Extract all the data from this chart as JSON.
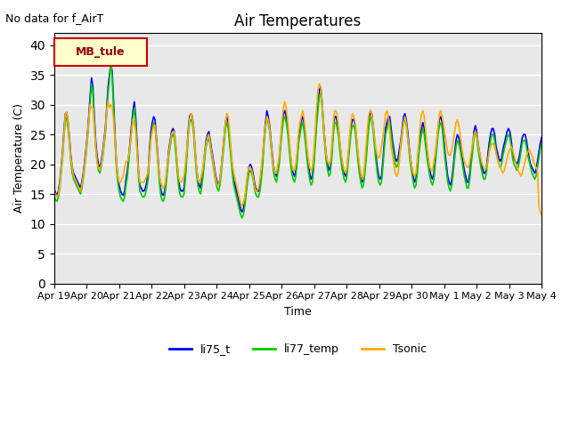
{
  "title": "Air Temperatures",
  "ylabel": "Air Temperature (C)",
  "xlabel": "Time",
  "no_data_text": "No data for f_AirT",
  "legend_label": "MB_tule",
  "ylim": [
    0,
    42
  ],
  "yticks": [
    0,
    5,
    10,
    15,
    20,
    25,
    30,
    35,
    40
  ],
  "series_colors": {
    "li75_t": "#0000ff",
    "li77_temp": "#00cc00",
    "Tsonic": "#ffaa00"
  },
  "x_tick_labels": [
    "Apr 19",
    "Apr 20",
    "Apr 21",
    "Apr 22",
    "Apr 23",
    "Apr 24",
    "Apr 25",
    "Apr 26",
    "Apr 27",
    "Apr 28",
    "Apr 29",
    "Apr 30",
    "May 1",
    "May 2",
    "May 3",
    "May 4"
  ],
  "background_color": "#e8e8e8",
  "plot_bg_color": "#e8e8e8",
  "figure_bg_color": "#ffffff",
  "grid_color": "#ffffff",
  "li75_t": [
    15.8,
    15.2,
    14.8,
    15.5,
    17.0,
    19.5,
    22.0,
    25.5,
    28.5,
    28.7,
    27.0,
    24.5,
    21.5,
    19.5,
    18.5,
    18.0,
    17.5,
    17.0,
    16.5,
    16.0,
    17.0,
    18.5,
    20.5,
    22.5,
    25.0,
    28.0,
    31.5,
    34.5,
    33.0,
    28.0,
    24.0,
    21.5,
    20.0,
    19.5,
    20.5,
    22.0,
    24.0,
    26.0,
    29.5,
    33.0,
    35.0,
    37.0,
    35.5,
    30.5,
    25.0,
    20.5,
    18.0,
    16.5,
    15.5,
    15.0,
    14.8,
    15.5,
    17.5,
    19.0,
    21.5,
    24.0,
    26.5,
    29.0,
    30.5,
    28.0,
    23.5,
    19.0,
    16.5,
    16.0,
    15.5,
    15.5,
    16.0,
    17.0,
    18.5,
    22.5,
    25.5,
    27.0,
    28.0,
    27.5,
    24.5,
    21.5,
    18.5,
    16.0,
    15.0,
    14.8,
    15.5,
    17.5,
    20.0,
    22.5,
    24.0,
    25.5,
    26.0,
    25.5,
    23.0,
    20.0,
    17.5,
    16.0,
    15.5,
    15.5,
    16.0,
    18.5,
    22.0,
    25.5,
    28.0,
    28.5,
    28.0,
    26.0,
    22.5,
    19.5,
    17.5,
    16.5,
    16.0,
    17.5,
    19.5,
    22.0,
    24.0,
    25.0,
    25.5,
    24.0,
    22.5,
    21.0,
    19.5,
    18.0,
    17.0,
    16.5,
    17.5,
    19.5,
    22.0,
    24.5,
    27.0,
    28.0,
    27.0,
    24.5,
    22.0,
    19.5,
    17.5,
    16.5,
    15.5,
    14.5,
    13.5,
    12.5,
    12.0,
    12.5,
    14.0,
    16.0,
    18.0,
    19.5,
    20.0,
    19.5,
    18.5,
    17.0,
    16.0,
    15.5,
    15.5,
    16.5,
    18.5,
    21.0,
    24.5,
    27.0,
    29.0,
    28.0,
    26.5,
    24.0,
    21.5,
    19.5,
    18.5,
    18.0,
    19.5,
    21.0,
    24.0,
    26.5,
    28.5,
    29.0,
    28.0,
    26.5,
    24.0,
    21.5,
    19.5,
    18.5,
    18.0,
    19.0,
    21.5,
    24.5,
    26.0,
    27.5,
    28.0,
    26.5,
    24.5,
    22.0,
    20.0,
    18.5,
    17.5,
    18.0,
    20.5,
    24.0,
    27.5,
    30.0,
    32.5,
    33.0,
    30.5,
    27.0,
    24.0,
    21.5,
    20.0,
    19.0,
    19.5,
    22.0,
    25.5,
    28.0,
    28.0,
    27.0,
    25.5,
    23.0,
    21.0,
    19.5,
    18.5,
    18.0,
    19.0,
    21.5,
    24.0,
    26.5,
    27.5,
    27.5,
    26.5,
    24.0,
    21.5,
    19.5,
    18.0,
    17.0,
    17.5,
    19.5,
    22.0,
    25.0,
    27.5,
    29.0,
    28.5,
    26.5,
    24.0,
    21.5,
    19.5,
    18.0,
    17.5,
    18.0,
    20.5,
    23.5,
    26.0,
    27.0,
    28.0,
    28.0,
    26.0,
    24.0,
    22.5,
    21.0,
    20.5,
    21.0,
    22.5,
    24.0,
    26.0,
    28.0,
    28.5,
    27.5,
    25.5,
    23.0,
    21.0,
    19.5,
    18.0,
    17.0,
    17.5,
    19.5,
    22.5,
    24.5,
    26.0,
    27.0,
    26.0,
    24.0,
    22.0,
    20.5,
    19.0,
    18.0,
    17.5,
    18.5,
    21.0,
    23.5,
    26.0,
    27.5,
    28.0,
    27.0,
    24.5,
    22.0,
    20.0,
    18.0,
    17.0,
    16.5,
    17.5,
    19.5,
    22.0,
    24.0,
    25.0,
    24.5,
    23.5,
    22.0,
    20.5,
    19.0,
    18.0,
    17.0,
    17.0,
    18.5,
    21.0,
    23.0,
    25.5,
    26.5,
    25.5,
    23.5,
    22.0,
    20.5,
    19.5,
    18.5,
    18.5,
    19.5,
    21.5,
    23.5,
    25.0,
    26.0,
    26.0,
    25.0,
    23.0,
    22.0,
    21.0,
    20.5,
    21.0,
    22.5,
    23.5,
    24.5,
    25.5,
    26.0,
    25.5,
    24.0,
    22.0,
    21.0,
    20.5,
    20.0,
    20.5,
    21.5,
    23.0,
    24.5,
    25.0,
    25.0,
    24.0,
    22.5,
    21.0,
    20.0,
    19.5,
    19.0,
    18.5,
    19.0,
    20.5,
    22.0,
    23.5,
    24.5,
    24.5,
    23.5,
    22.5,
    21.0,
    20.0,
    19.0,
    18.5,
    18.5,
    19.5,
    21.0,
    22.5,
    24.0,
    24.5,
    24.0,
    23.0,
    21.5,
    20.5,
    19.5,
    18.5,
    18.0,
    18.5,
    20.0,
    21.5,
    23.0,
    24.0,
    24.0,
    23.5,
    22.5,
    21.0,
    20.0,
    19.5,
    19.0,
    19.5,
    20.5,
    21.5,
    22.5,
    23.0,
    23.5,
    23.0,
    22.5,
    21.5,
    20.5,
    20.0,
    19.5,
    13.5,
    12.5,
    12.0
  ],
  "li77_temp": [
    14.5,
    14.0,
    13.8,
    14.5,
    16.0,
    18.5,
    21.0,
    24.5,
    27.5,
    27.7,
    26.0,
    23.5,
    20.5,
    18.5,
    17.5,
    17.0,
    16.5,
    16.0,
    15.5,
    15.0,
    16.0,
    17.5,
    19.5,
    21.5,
    24.0,
    27.0,
    30.5,
    33.5,
    32.0,
    27.0,
    23.0,
    20.5,
    19.0,
    18.5,
    19.5,
    21.0,
    23.0,
    25.0,
    28.5,
    32.0,
    34.0,
    37.5,
    34.5,
    29.5,
    24.0,
    19.5,
    17.0,
    15.5,
    14.5,
    14.0,
    13.8,
    14.5,
    16.5,
    18.0,
    20.5,
    23.0,
    25.5,
    28.0,
    29.5,
    27.0,
    22.5,
    18.0,
    15.5,
    15.0,
    14.5,
    14.5,
    15.0,
    16.0,
    17.5,
    21.5,
    24.5,
    26.0,
    27.0,
    26.5,
    23.5,
    20.5,
    17.5,
    15.0,
    14.0,
    13.8,
    14.5,
    16.5,
    19.0,
    21.5,
    23.0,
    24.5,
    25.0,
    24.5,
    22.0,
    19.0,
    16.5,
    15.0,
    14.5,
    14.5,
    15.0,
    17.5,
    21.0,
    24.5,
    27.0,
    27.5,
    27.0,
    25.0,
    21.5,
    18.5,
    16.5,
    15.5,
    15.0,
    16.5,
    18.5,
    21.0,
    23.0,
    24.0,
    24.5,
    23.0,
    21.5,
    20.0,
    18.5,
    17.0,
    16.0,
    15.5,
    16.5,
    18.5,
    21.0,
    23.5,
    26.0,
    27.0,
    26.0,
    23.5,
    21.0,
    18.5,
    16.5,
    15.5,
    14.5,
    13.5,
    12.5,
    11.5,
    11.0,
    11.5,
    13.0,
    15.0,
    17.0,
    18.5,
    19.0,
    18.5,
    17.5,
    16.0,
    15.0,
    14.5,
    14.5,
    15.5,
    17.5,
    20.0,
    23.5,
    26.0,
    28.0,
    27.0,
    25.5,
    23.0,
    20.5,
    18.5,
    17.5,
    17.0,
    18.5,
    20.0,
    23.0,
    25.5,
    27.5,
    28.0,
    27.0,
    25.5,
    23.0,
    20.5,
    18.5,
    17.5,
    17.0,
    18.0,
    20.5,
    23.5,
    25.0,
    26.5,
    27.0,
    25.5,
    23.5,
    21.0,
    19.0,
    17.5,
    16.5,
    17.0,
    19.5,
    23.0,
    26.5,
    29.0,
    31.5,
    32.0,
    29.5,
    26.0,
    23.0,
    20.5,
    19.0,
    18.0,
    18.5,
    21.0,
    24.5,
    27.0,
    27.0,
    26.0,
    24.5,
    22.0,
    20.0,
    18.5,
    17.5,
    17.0,
    18.0,
    20.5,
    23.0,
    25.5,
    26.5,
    26.5,
    25.5,
    23.0,
    20.5,
    18.5,
    17.0,
    16.0,
    16.5,
    18.5,
    21.0,
    24.0,
    26.5,
    28.0,
    27.5,
    25.5,
    23.0,
    20.5,
    18.5,
    17.0,
    16.5,
    17.0,
    19.5,
    22.5,
    25.0,
    26.0,
    27.0,
    27.0,
    25.0,
    23.0,
    21.5,
    20.0,
    19.5,
    20.0,
    21.5,
    23.0,
    25.0,
    27.0,
    27.5,
    26.5,
    24.5,
    22.0,
    20.0,
    18.5,
    17.0,
    16.0,
    16.5,
    18.5,
    21.5,
    23.5,
    25.0,
    26.0,
    25.0,
    23.0,
    21.0,
    19.5,
    18.0,
    17.0,
    16.5,
    17.5,
    20.0,
    22.5,
    25.0,
    26.5,
    27.0,
    26.0,
    23.5,
    21.0,
    19.0,
    17.0,
    16.0,
    15.5,
    16.5,
    18.5,
    21.0,
    23.0,
    24.0,
    23.5,
    22.5,
    21.0,
    19.5,
    18.0,
    17.0,
    16.0,
    16.0,
    17.5,
    20.0,
    22.0,
    24.5,
    25.5,
    24.5,
    22.5,
    21.0,
    19.5,
    18.5,
    17.5,
    17.5,
    18.5,
    20.5,
    22.5,
    24.0,
    25.0,
    25.0,
    24.0,
    22.0,
    21.0,
    20.0,
    19.5,
    20.0,
    21.5,
    22.5,
    23.5,
    24.5,
    25.0,
    24.5,
    23.0,
    21.0,
    20.0,
    19.5,
    19.0,
    19.5,
    20.5,
    22.0,
    23.5,
    24.0,
    24.0,
    23.0,
    21.5,
    20.5,
    19.5,
    18.5,
    18.0,
    17.5,
    18.0,
    19.5,
    21.0,
    22.5,
    23.5,
    23.5,
    23.0,
    22.0,
    20.5,
    19.5,
    19.0,
    18.5,
    18.0,
    18.5,
    19.5,
    20.5,
    21.5,
    22.0,
    22.5,
    22.0,
    21.5,
    20.5,
    19.5,
    19.0,
    18.5,
    18.0,
    18.5,
    19.5,
    20.5,
    21.5,
    22.0,
    22.5,
    22.0,
    21.5,
    20.5,
    19.5,
    19.0,
    18.5,
    12.5,
    11.5,
    11.0
  ],
  "Tsonic": [
    15.5,
    15.0,
    14.5,
    15.0,
    16.5,
    19.0,
    21.5,
    24.5,
    28.5,
    28.8,
    27.5,
    24.0,
    21.0,
    19.5,
    18.0,
    17.5,
    17.0,
    16.5,
    16.0,
    15.5,
    16.5,
    18.0,
    20.0,
    22.0,
    24.5,
    27.5,
    30.0,
    29.5,
    29.5,
    26.5,
    23.0,
    20.5,
    19.5,
    19.0,
    20.0,
    21.5,
    23.5,
    25.5,
    29.0,
    30.5,
    29.5,
    30.0,
    29.5,
    27.5,
    24.0,
    20.5,
    18.0,
    17.0,
    17.0,
    17.5,
    18.0,
    19.5,
    20.5,
    20.5,
    21.5,
    23.5,
    25.5,
    27.5,
    27.0,
    25.5,
    22.0,
    19.0,
    17.0,
    17.0,
    17.0,
    17.0,
    17.5,
    18.0,
    19.0,
    21.5,
    24.0,
    25.5,
    26.5,
    26.5,
    24.0,
    21.0,
    18.5,
    17.0,
    16.5,
    16.0,
    16.5,
    18.0,
    20.0,
    22.0,
    23.5,
    25.0,
    25.5,
    25.5,
    23.5,
    20.5,
    18.0,
    17.0,
    17.0,
    17.5,
    18.0,
    20.0,
    22.5,
    25.0,
    27.5,
    28.5,
    28.0,
    26.0,
    22.5,
    19.5,
    17.5,
    17.0,
    17.5,
    18.5,
    20.0,
    22.0,
    23.5,
    24.5,
    25.0,
    23.5,
    22.0,
    20.5,
    19.0,
    17.5,
    16.5,
    16.5,
    17.5,
    19.5,
    22.0,
    24.5,
    27.0,
    28.5,
    28.0,
    25.5,
    22.5,
    20.0,
    18.5,
    17.5,
    16.5,
    15.5,
    14.5,
    13.5,
    13.0,
    13.5,
    14.5,
    16.5,
    18.5,
    19.5,
    19.5,
    19.0,
    18.0,
    16.5,
    15.5,
    15.5,
    16.0,
    17.5,
    19.5,
    22.0,
    24.5,
    26.5,
    28.0,
    27.5,
    26.0,
    23.5,
    21.0,
    19.5,
    18.5,
    18.5,
    20.0,
    21.5,
    24.5,
    27.5,
    29.5,
    30.5,
    29.5,
    27.5,
    25.0,
    22.0,
    20.0,
    19.0,
    19.0,
    20.0,
    22.5,
    25.5,
    27.0,
    28.0,
    29.0,
    27.5,
    25.5,
    23.0,
    21.0,
    19.5,
    19.0,
    19.5,
    22.0,
    25.5,
    29.5,
    32.5,
    33.5,
    33.0,
    30.5,
    27.0,
    24.0,
    21.5,
    20.5,
    20.0,
    20.5,
    23.0,
    26.5,
    29.0,
    29.0,
    28.0,
    26.0,
    23.5,
    21.5,
    20.0,
    19.0,
    18.5,
    19.5,
    22.0,
    25.0,
    27.5,
    28.5,
    28.0,
    27.0,
    24.5,
    22.0,
    20.0,
    18.5,
    17.5,
    18.0,
    20.5,
    23.5,
    26.5,
    28.5,
    29.0,
    28.5,
    26.5,
    24.5,
    22.5,
    21.5,
    21.0,
    21.5,
    23.0,
    24.5,
    26.5,
    28.5,
    29.0,
    28.0,
    25.5,
    23.0,
    21.5,
    20.0,
    18.5,
    18.0,
    18.5,
    20.5,
    23.5,
    25.5,
    27.0,
    28.0,
    27.0,
    24.5,
    22.5,
    21.0,
    19.5,
    18.5,
    18.0,
    18.5,
    21.0,
    23.5,
    26.5,
    28.5,
    29.0,
    28.0,
    25.5,
    23.0,
    21.0,
    19.5,
    19.0,
    19.0,
    20.5,
    22.0,
    24.0,
    26.5,
    28.5,
    29.0,
    28.0,
    26.5,
    25.0,
    23.5,
    22.0,
    21.5,
    21.5,
    22.5,
    24.0,
    25.5,
    27.0,
    27.5,
    26.5,
    25.0,
    23.0,
    21.5,
    20.5,
    20.0,
    19.5,
    19.5,
    20.5,
    22.0,
    23.5,
    25.0,
    25.5,
    25.0,
    23.5,
    22.0,
    21.0,
    20.0,
    19.5,
    19.0,
    19.5,
    20.5,
    22.0,
    23.0,
    23.5,
    23.5,
    23.0,
    22.0,
    21.0,
    20.0,
    19.5,
    19.0,
    18.5,
    19.0,
    20.0,
    21.0,
    22.0,
    22.5,
    23.0,
    22.5,
    21.5,
    20.5,
    19.5,
    19.0,
    18.5,
    18.0,
    18.5,
    19.5,
    20.5,
    21.5,
    22.0,
    22.5,
    22.0,
    21.5,
    20.5,
    20.0,
    19.5,
    19.0,
    13.0,
    12.0,
    11.5
  ]
}
